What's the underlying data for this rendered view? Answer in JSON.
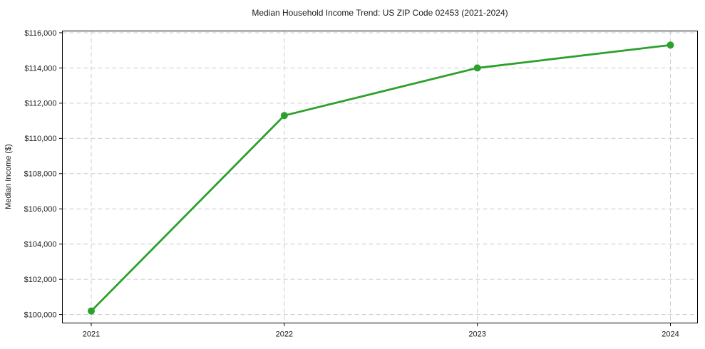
{
  "chart_data": {
    "type": "line",
    "title": "Median Household Income Trend: US ZIP Code 02453 (2021-2024)",
    "xlabel": "",
    "ylabel": "Median Income ($)",
    "x": [
      "2021",
      "2022",
      "2023",
      "2024"
    ],
    "xtick_labels": [
      "2021",
      "2022",
      "2023",
      "2024"
    ],
    "series": [
      {
        "name": "Median Household Income",
        "values": [
          100200,
          111300,
          114000,
          115300
        ],
        "color": "#2ca02c",
        "marker": "circle",
        "marker_radius": 5,
        "line_width": 2.8
      }
    ],
    "yticks": [
      100000,
      102000,
      104000,
      106000,
      108000,
      110000,
      112000,
      114000,
      116000
    ],
    "ytick_labels": [
      "$100,000",
      "$102,000",
      "$104,000",
      "$106,000",
      "$108,000",
      "$110,000",
      "$112,000",
      "$114,000",
      "$116,000"
    ],
    "ylim": [
      99520,
      116100
    ],
    "grid": true,
    "grid_style": "dashed",
    "legend": "none"
  },
  "style": {
    "line_color": "#2ca02c",
    "grid_color": "#cccccc",
    "axis_color": "#000000",
    "text_color": "#1a1a1a",
    "background": "#ffffff"
  }
}
